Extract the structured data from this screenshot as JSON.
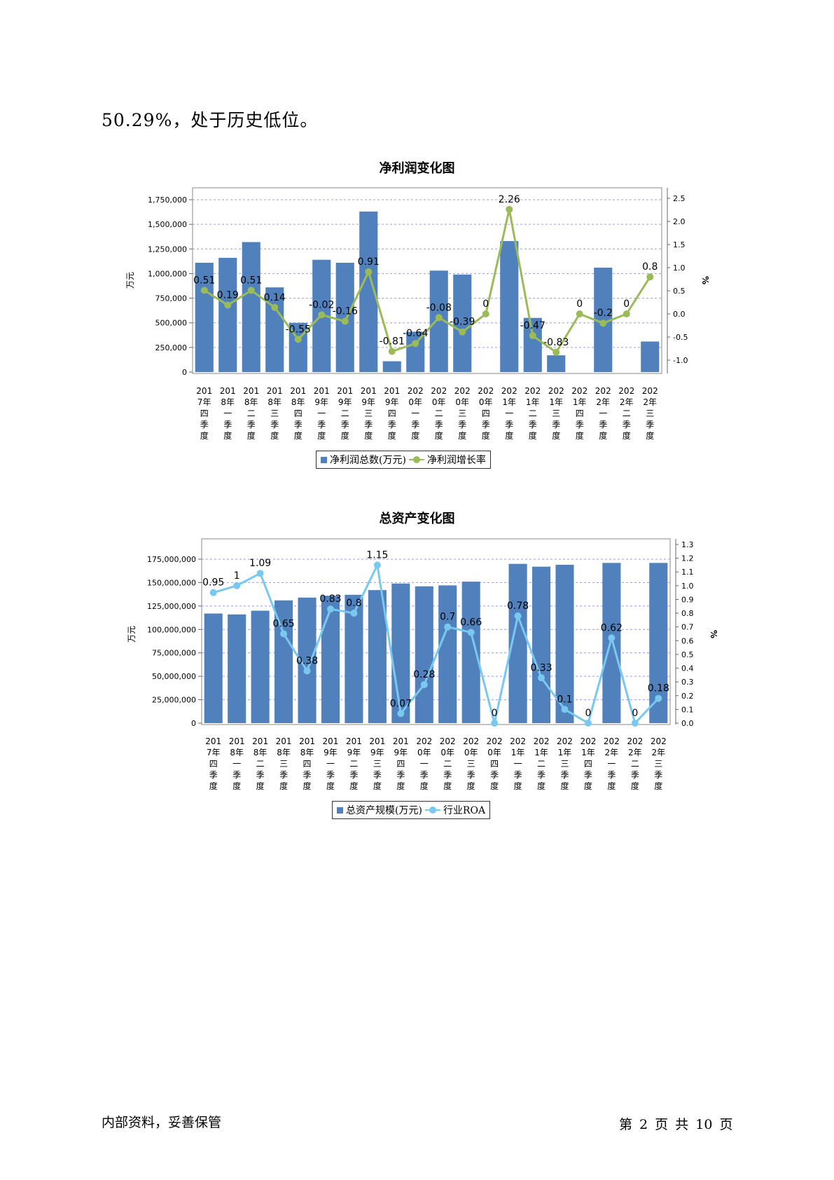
{
  "intro_text": "50.29%，处于历史低位。",
  "footer": {
    "left": "内部资料，妥善保管",
    "right": "第 2 页  共 10 页"
  },
  "colors": {
    "bar": "#5081bd",
    "line1": "#9bbb59",
    "line2": "#78c8f0",
    "grid": "#9999ee"
  },
  "chart_data": [
    {
      "type": "bar+line",
      "title": "净利润变化图",
      "ylabel_left": "万元",
      "ylabel_right": "%",
      "legend_position": "bottom",
      "grid": true,
      "categories": [
        [
          "201",
          "7年",
          "四",
          "季",
          "度"
        ],
        [
          "201",
          "8年",
          "一",
          "季",
          "度"
        ],
        [
          "201",
          "8年",
          "二",
          "季",
          "度"
        ],
        [
          "201",
          "8年",
          "三",
          "季",
          "度"
        ],
        [
          "201",
          "8年",
          "四",
          "季",
          "度"
        ],
        [
          "201",
          "9年",
          "一",
          "季",
          "度"
        ],
        [
          "201",
          "9年",
          "二",
          "季",
          "度"
        ],
        [
          "201",
          "9年",
          "三",
          "季",
          "度"
        ],
        [
          "201",
          "9年",
          "四",
          "季",
          "度"
        ],
        [
          "202",
          "0年",
          "一",
          "季",
          "度"
        ],
        [
          "202",
          "0年",
          "二",
          "季",
          "度"
        ],
        [
          "202",
          "0年",
          "三",
          "季",
          "度"
        ],
        [
          "202",
          "0年",
          "四",
          "季",
          "度"
        ],
        [
          "202",
          "1年",
          "一",
          "季",
          "度"
        ],
        [
          "202",
          "1年",
          "二",
          "季",
          "度"
        ],
        [
          "202",
          "1年",
          "三",
          "季",
          "度"
        ],
        [
          "202",
          "1年",
          "四",
          "季",
          "度"
        ],
        [
          "202",
          "2年",
          "一",
          "季",
          "度"
        ],
        [
          "202",
          "2年",
          "二",
          "季",
          "度"
        ],
        [
          "202",
          "2年",
          "三",
          "季",
          "度"
        ]
      ],
      "left_axis": {
        "min": 0,
        "max": 1750000,
        "ticks": [
          "0",
          "250,000",
          "500,000",
          "750,000",
          "1,000,000",
          "1,250,000",
          "1,500,000",
          "1,750,000"
        ]
      },
      "right_axis": {
        "min": -1.0,
        "max": 2.5,
        "ticks": [
          "-1.0",
          "-0.5",
          "0.0",
          "0.5",
          "1.0",
          "1.5",
          "2.0",
          "2.5"
        ]
      },
      "series": [
        {
          "name": "净利润总数(万元)",
          "kind": "bar",
          "values": [
            1110000,
            1160000,
            1320000,
            860000,
            500000,
            1140000,
            1110000,
            1630000,
            110000,
            410000,
            1030000,
            990000,
            0,
            1330000,
            550000,
            170000,
            0,
            1060000,
            0,
            310000
          ]
        },
        {
          "name": "净利润增长率",
          "kind": "line",
          "values": [
            0.51,
            0.19,
            0.51,
            0.14,
            -0.55,
            -0.02,
            -0.16,
            0.91,
            -0.81,
            -0.64,
            -0.08,
            -0.39,
            0,
            2.26,
            -0.47,
            -0.83,
            0,
            -0.2,
            0,
            0.8
          ],
          "labels": [
            "0.51",
            "0.19",
            "0.51",
            "0.14",
            "-0.55",
            "-0.02",
            "-0.16",
            "0.91",
            "-0.81",
            "-0.64",
            "-0.08",
            "-0.39",
            "0",
            "2.26",
            "-0.47",
            "-0.83",
            "0",
            "-0.2",
            "0",
            "0.8"
          ]
        }
      ]
    },
    {
      "type": "bar+line",
      "title": "总资产变化图",
      "ylabel_left": "万元",
      "ylabel_right": "%",
      "legend_position": "bottom",
      "grid": true,
      "categories": [
        [
          "201",
          "7年",
          "四",
          "季",
          "度"
        ],
        [
          "201",
          "8年",
          "一",
          "季",
          "度"
        ],
        [
          "201",
          "8年",
          "二",
          "季",
          "度"
        ],
        [
          "201",
          "8年",
          "三",
          "季",
          "度"
        ],
        [
          "201",
          "8年",
          "四",
          "季",
          "度"
        ],
        [
          "201",
          "9年",
          "一",
          "季",
          "度"
        ],
        [
          "201",
          "9年",
          "二",
          "季",
          "度"
        ],
        [
          "201",
          "9年",
          "三",
          "季",
          "度"
        ],
        [
          "201",
          "9年",
          "四",
          "季",
          "度"
        ],
        [
          "202",
          "0年",
          "一",
          "季",
          "度"
        ],
        [
          "202",
          "0年",
          "二",
          "季",
          "度"
        ],
        [
          "202",
          "0年",
          "三",
          "季",
          "度"
        ],
        [
          "202",
          "0年",
          "四",
          "季",
          "度"
        ],
        [
          "202",
          "1年",
          "一",
          "季",
          "度"
        ],
        [
          "202",
          "1年",
          "二",
          "季",
          "度"
        ],
        [
          "202",
          "1年",
          "三",
          "季",
          "度"
        ],
        [
          "202",
          "1年",
          "四",
          "季",
          "度"
        ],
        [
          "202",
          "2年",
          "一",
          "季",
          "度"
        ],
        [
          "202",
          "2年",
          "二",
          "季",
          "度"
        ],
        [
          "202",
          "2年",
          "三",
          "季",
          "度"
        ]
      ],
      "left_axis": {
        "min": 0,
        "max": 175000000,
        "ticks": [
          "0",
          "25,000,000",
          "50,000,000",
          "75,000,000",
          "100,000,000",
          "125,000,000",
          "150,000,000",
          "175,000,000"
        ]
      },
      "right_axis": {
        "min": 0,
        "max": 1.3,
        "ticks": [
          "0.0",
          "0.1",
          "0.2",
          "0.3",
          "0.4",
          "0.5",
          "0.6",
          "0.7",
          "0.8",
          "0.9",
          "1.0",
          "1.1",
          "1.2",
          "1.3"
        ]
      },
      "series": [
        {
          "name": "总资产规模(万元)",
          "kind": "bar",
          "values": [
            117000000,
            116000000,
            120000000,
            131000000,
            134000000,
            136000000,
            137000000,
            142000000,
            149000000,
            146000000,
            147000000,
            151000000,
            0,
            170000000,
            167000000,
            169000000,
            0,
            171000000,
            0,
            171000000
          ]
        },
        {
          "name": "行业ROA",
          "kind": "line",
          "values": [
            0.95,
            1,
            1.09,
            0.65,
            0.38,
            0.83,
            0.8,
            1.15,
            0.07,
            0.28,
            0.7,
            0.66,
            0,
            0.78,
            0.33,
            0.1,
            0,
            0.62,
            0,
            0.18
          ],
          "labels": [
            "0.95",
            "1",
            "1.09",
            "0.65",
            "0.38",
            "0.83",
            "0.8",
            "1.15",
            "0.07",
            "0.28",
            "0.7",
            "0.66",
            "0",
            "0.78",
            "0.33",
            "0.1",
            "0",
            "0.62",
            "0",
            "0.18"
          ]
        }
      ]
    }
  ]
}
